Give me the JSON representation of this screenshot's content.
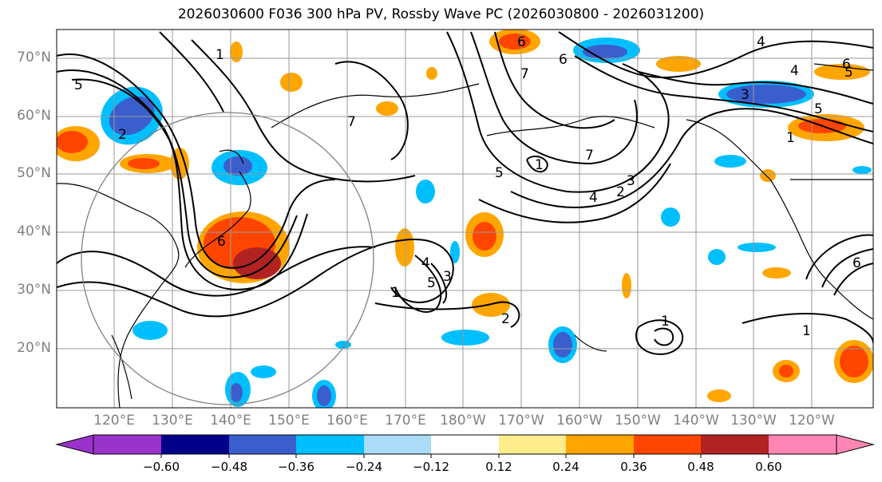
{
  "title": "2026030600 F036 300 hPa PV, Rossby Wave PC (2026030800 - 2026031200)",
  "map": {
    "lon_range": [
      112,
      247
    ],
    "lat_range": [
      10,
      75
    ],
    "lat_labels": [
      "70°N",
      "60°N",
      "50°N",
      "40°N",
      "30°N",
      "20°N"
    ],
    "lon_labels": [
      "120°E",
      "130°E",
      "140°E",
      "150°E",
      "160°E",
      "170°E",
      "180°W",
      "170°W",
      "160°W",
      "150°W",
      "140°W",
      "130°W",
      "120°W"
    ],
    "contour_labels": [
      "1",
      "2",
      "3",
      "4",
      "5",
      "6",
      "7",
      "6",
      "5",
      "4",
      "3",
      "2",
      "1",
      "7",
      "4",
      "5",
      "6",
      "1",
      "1",
      "2",
      "3",
      "4",
      "5",
      "6",
      "7",
      "6",
      "1",
      "5",
      "1"
    ]
  },
  "colorbar": {
    "colors": [
      "#9933cc",
      "#00008b",
      "#3a5fcd",
      "#00bfff",
      "#aadcf8",
      "#ffffff",
      "#ffec8b",
      "#ffa500",
      "#ff4500",
      "#b22222",
      "#ff86b4"
    ],
    "tick_labels": [
      "−0.60",
      "−0.48",
      "−0.36",
      "−0.24",
      "−0.12",
      "0.12",
      "0.24",
      "0.36",
      "0.48",
      "0.60"
    ]
  }
}
